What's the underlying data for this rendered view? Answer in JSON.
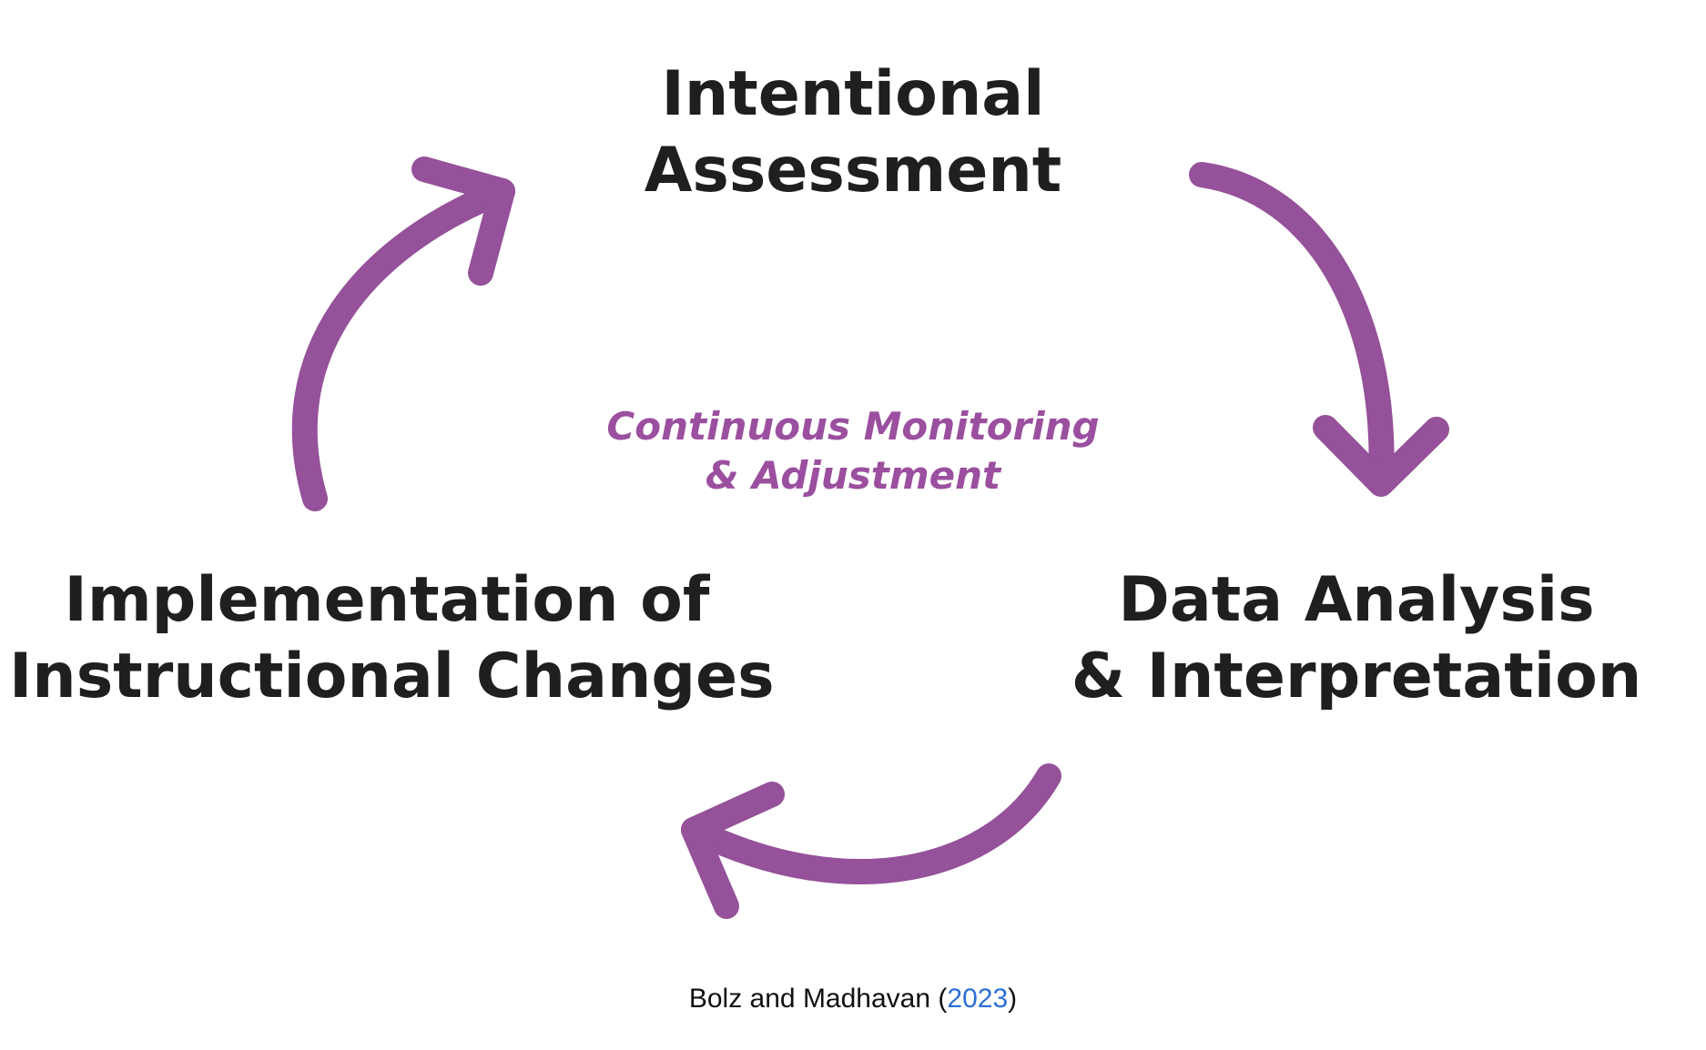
{
  "diagram": {
    "nodes": {
      "top": {
        "line1": "Intentional",
        "line2": "Assessment"
      },
      "right": {
        "line1": "Data Analysis",
        "line2": "& Interpretation"
      },
      "left": {
        "line1": "Implementation of",
        "line2": "Instructional Changes"
      }
    },
    "center": {
      "line1": "Continuous Monitoring",
      "line2": "& Adjustment"
    },
    "colors": {
      "arrow": "#95519a",
      "center_text": "#9b4f9f",
      "node_text": "#1f1f1f",
      "link": "#2b6fd6"
    }
  },
  "caption": {
    "authors": "Bolz and Madhavan",
    "open_paren": "(",
    "year": "2023",
    "close_paren": ")"
  }
}
